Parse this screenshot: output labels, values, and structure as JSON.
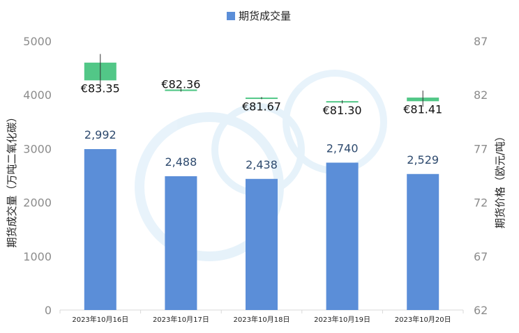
{
  "chart_data": {
    "type": "bar",
    "legend": {
      "label": "期货成交量",
      "position": "top-center"
    },
    "categories": [
      "2023年10月16日",
      "2023年10月17日",
      "2023年10月18日",
      "2023年10月19日",
      "2023年10月20日"
    ],
    "series": [
      {
        "name": "期货成交量",
        "axis": "left",
        "color": "#5b8ed8",
        "values": [
          2992,
          2488,
          2438,
          2740,
          2529
        ],
        "labels": [
          "2,992",
          "2,488",
          "2,438",
          "2,740",
          "2,529"
        ]
      }
    ],
    "price_candles": {
      "axis": "right",
      "color": "#52c787",
      "values": [
        {
          "open": 83.35,
          "close": 85.0,
          "high": 85.8,
          "low": 82.8,
          "label": "€83.35"
        },
        {
          "open": 82.36,
          "close": 82.5,
          "high": 82.6,
          "low": 82.3,
          "label": "€82.36"
        },
        {
          "open": 81.67,
          "close": 81.75,
          "high": 81.8,
          "low": 81.6,
          "label": "€81.67"
        },
        {
          "open": 81.3,
          "close": 81.42,
          "high": 81.5,
          "low": 81.2,
          "label": "€81.30"
        },
        {
          "open": 81.41,
          "close": 81.75,
          "high": 82.4,
          "low": 80.9,
          "label": "€81.41"
        }
      ]
    },
    "ylabel_left": "期货成交量（万吨二氧化碳）",
    "ylabel_right": "期货价格（欧元/吨）",
    "ylim_left": [
      0,
      5000
    ],
    "yticks_left": [
      "0",
      "1000",
      "2000",
      "3000",
      "4000",
      "5000"
    ],
    "ylim_right": [
      62,
      87
    ],
    "yticks_right": [
      "62",
      "67",
      "72",
      "77",
      "82",
      "87"
    ],
    "grid": false
  }
}
